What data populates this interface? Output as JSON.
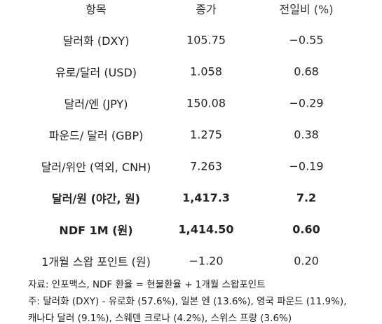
{
  "table": {
    "header": [
      "항목",
      "종가",
      "전일비 (%)"
    ],
    "rows": [
      [
        "달러화 (DXY)",
        "105.75",
        "−0.55"
      ],
      [
        "유로/달러 (USD)",
        "1.058",
        "0.68"
      ],
      [
        "달러/엔 (JPY)",
        "150.08",
        "−0.29"
      ],
      [
        "파운드/ 달러 (GBP)",
        "1.275",
        "0.38"
      ],
      [
        "달러/위안 (역외, CNH)",
        "7.263",
        "−0.19"
      ],
      [
        "달러/원 (야간, 원)",
        "1,417.3",
        "7.2"
      ],
      [
        "NDF 1M (원)",
        "1,414.50",
        "0.60"
      ],
      [
        "1개월 스왑 포인트 (원)",
        "−1.20",
        "0.20"
      ]
    ]
  },
  "notes": [
    "자료: 인포맥스, NDF 환율 = 현물환율 + 1개월 스왑포인트",
    "주: 달러화 (DXY) - 유로화 (57.6%), 일본 엔 (13.6%), 영국 파운드 (11.9%),",
    "캐나다 달러 (9.1%), 스웨덴 크로나 (4.2%), 스위스 프랑 (3.6%)"
  ]
}
